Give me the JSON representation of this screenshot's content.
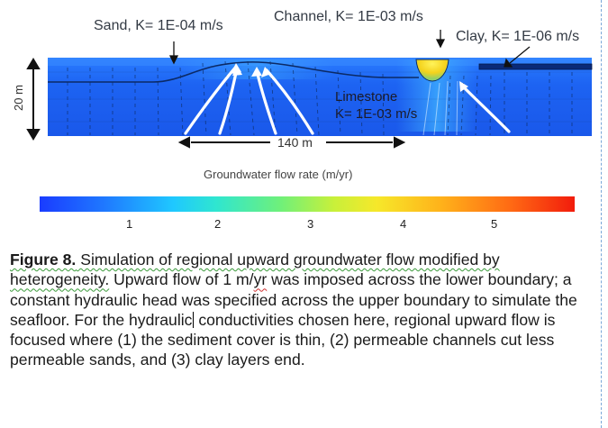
{
  "figure": {
    "labels": {
      "sand": "Sand, K= 1E-04 m/s",
      "channel": "Channel, K= 1E-03 m/s",
      "clay": "Clay, K= 1E-06 m/s",
      "limestone_line1": "Limestone",
      "limestone_line2": "K= 1E-03 m/s",
      "depth": "20 m",
      "distance": "140 m"
    },
    "colors": {
      "model_blue": "#1d5cf0",
      "model_light": "#2f8cff",
      "channel_yellow": "#f2e11c",
      "arrow_white": "#ffffff"
    }
  },
  "colorbar": {
    "title": "Groundwater flow rate (m/yr)",
    "ticks": [
      "1",
      "2",
      "3",
      "4",
      "5"
    ],
    "tick_values": [
      1,
      2,
      3,
      4,
      5
    ]
  },
  "caption": {
    "lead": "Figure 8.",
    "part1": " Simulation of regional upward groundwater flow modified by heterogeneity.",
    "part2": " Upward flow of 1 m/",
    "part2_unit": "yr",
    "part3": " was imposed across the lower boundary; a constant hydraulic head was specified across the upper boundary to simulate the seafloor. For the hydraulic",
    "part4": " conductivities chosen here, regional upward flow is focused where (1) the sediment cover is thin, (2) permeable channels cut less permeable sands, and (3) clay layers end."
  }
}
